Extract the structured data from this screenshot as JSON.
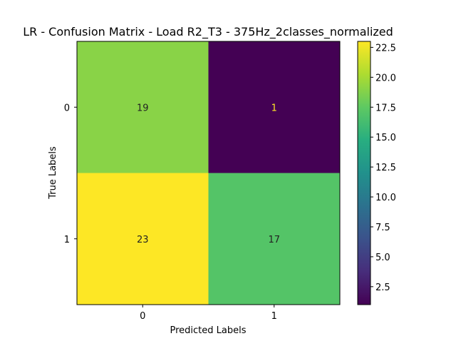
{
  "chart_data": {
    "type": "heatmap",
    "title": "LR - Confusion Matrix - Load R2_T3 - 375Hz_2classes_normalized",
    "xlabel": "Predicted Labels",
    "ylabel": "True Labels",
    "x_categories": [
      "0",
      "1"
    ],
    "y_categories": [
      "0",
      "1"
    ],
    "values": [
      [
        19,
        1
      ],
      [
        23,
        17
      ]
    ],
    "colormap": "viridis",
    "color_range": [
      1,
      23
    ],
    "colorbar_ticks": [
      "2.5",
      "5.0",
      "7.5",
      "10.0",
      "12.5",
      "15.0",
      "17.5",
      "20.0",
      "22.5"
    ],
    "grid": false,
    "colorbar_position": "right"
  }
}
